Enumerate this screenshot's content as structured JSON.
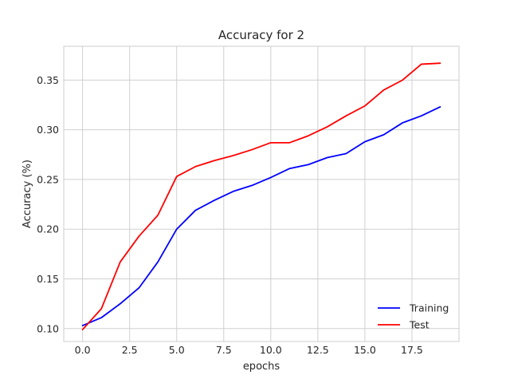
{
  "chart_data": {
    "type": "line",
    "title": "Accuracy for 2",
    "xlabel": "epochs",
    "ylabel": "Accuracy (%)",
    "xlim": [
      -1.0,
      20.0
    ],
    "ylim": [
      0.087,
      0.384
    ],
    "xticks": [
      0.0,
      2.5,
      5.0,
      7.5,
      10.0,
      12.5,
      15.0,
      17.5
    ],
    "xtick_labels": [
      "0.0",
      "2.5",
      "5.0",
      "7.5",
      "10.0",
      "12.5",
      "15.0",
      "17.5"
    ],
    "yticks": [
      0.1,
      0.15,
      0.2,
      0.25,
      0.3,
      0.35
    ],
    "ytick_labels": [
      "0.10",
      "0.15",
      "0.20",
      "0.25",
      "0.30",
      "0.35"
    ],
    "grid": true,
    "legend_position": "lower-right",
    "x": [
      0,
      1,
      2,
      3,
      4,
      5,
      6,
      7,
      8,
      9,
      10,
      11,
      12,
      13,
      14,
      15,
      16,
      17,
      18,
      19
    ],
    "series": [
      {
        "name": "Training",
        "color": "#0000ff",
        "values": [
          0.103,
          0.111,
          0.125,
          0.141,
          0.167,
          0.2,
          0.219,
          0.229,
          0.238,
          0.244,
          0.252,
          0.261,
          0.265,
          0.272,
          0.276,
          0.288,
          0.295,
          0.307,
          0.314,
          0.323
        ]
      },
      {
        "name": "Test",
        "color": "#ff0000",
        "values": [
          0.099,
          0.12,
          0.167,
          0.193,
          0.214,
          0.253,
          0.263,
          0.269,
          0.274,
          0.28,
          0.287,
          0.287,
          0.294,
          0.303,
          0.314,
          0.324,
          0.34,
          0.35,
          0.366,
          0.367
        ]
      }
    ]
  },
  "colors": {
    "grid": "#d0d0d0",
    "frame": "#cccccc",
    "text": "#262626"
  }
}
